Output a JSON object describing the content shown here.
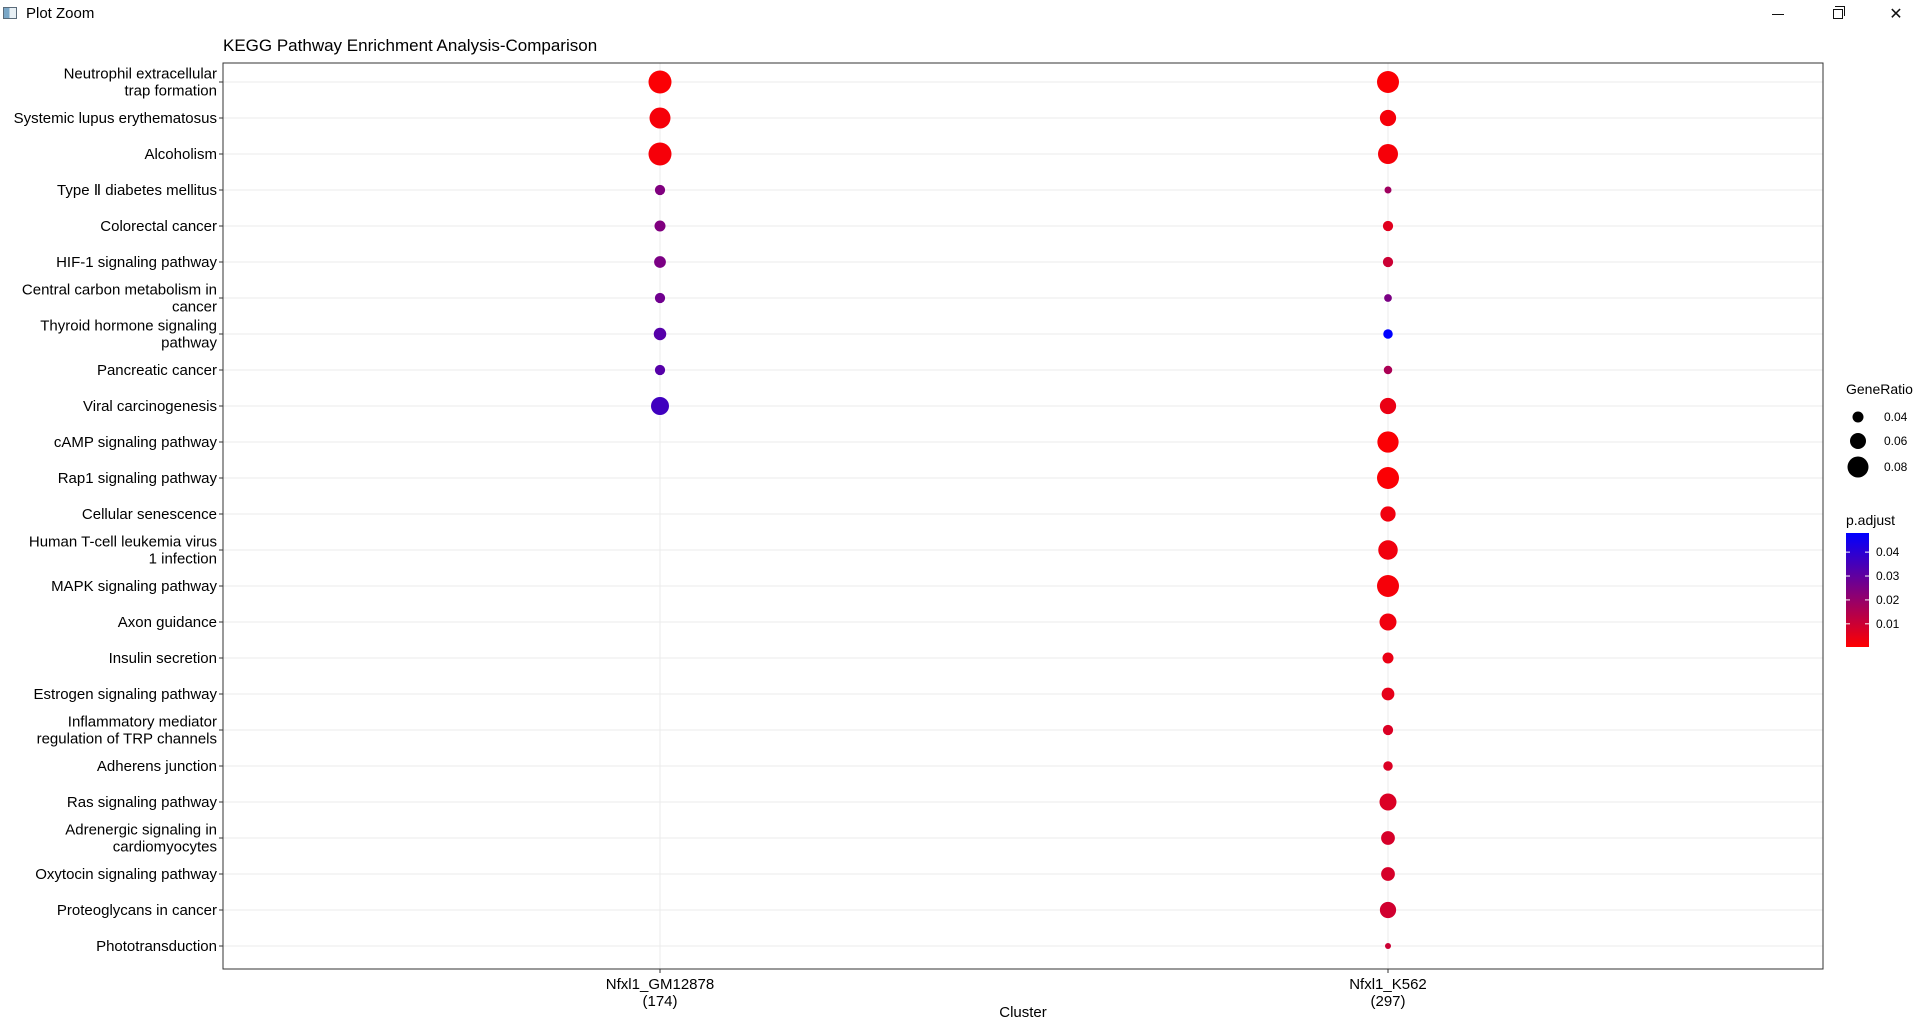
{
  "window": {
    "title": "Plot Zoom",
    "icon": "plot-window-icon",
    "controls": [
      "minimize-icon",
      "maximize-icon",
      "close-icon"
    ]
  },
  "chart_data": {
    "type": "scatter",
    "title": "KEGG Pathway Enrichment Analysis-Comparison",
    "xlabel": "Cluster",
    "ylabel": "",
    "x_categories": [
      {
        "name": "Nfxl1_GM12878",
        "count": "(174)"
      },
      {
        "name": "Nfxl1_K562",
        "count": "(297)"
      }
    ],
    "y_categories": [
      [
        "Neutrophil extracellular",
        "trap formation"
      ],
      [
        "Systemic lupus erythematosus"
      ],
      [
        "Alcoholism"
      ],
      [
        "Type Ⅱ diabetes mellitus"
      ],
      [
        "Colorectal cancer"
      ],
      [
        "HIF-1 signaling pathway"
      ],
      [
        "Central carbon metabolism in",
        "cancer"
      ],
      [
        "Thyroid hormone signaling",
        "pathway"
      ],
      [
        "Pancreatic cancer"
      ],
      [
        "Viral carcinogenesis"
      ],
      [
        "cAMP signaling pathway"
      ],
      [
        "Rap1 signaling pathway"
      ],
      [
        "Cellular senescence"
      ],
      [
        "Human T-cell leukemia virus",
        "1 infection"
      ],
      [
        "MAPK signaling pathway"
      ],
      [
        "Axon guidance"
      ],
      [
        "Insulin secretion"
      ],
      [
        "Estrogen signaling pathway"
      ],
      [
        "Inflammatory mediator",
        "regulation of TRP channels"
      ],
      [
        "Adherens junction"
      ],
      [
        "Ras signaling pathway"
      ],
      [
        "Adrenergic signaling in",
        "cardiomyocytes"
      ],
      [
        "Oxytocin signaling pathway"
      ],
      [
        "Proteoglycans in cancer"
      ],
      [
        "Phototransduction"
      ]
    ],
    "points": [
      {
        "cluster": 0,
        "pathway": 0,
        "gene_ratio": 0.088,
        "p_adjust": 0.001
      },
      {
        "cluster": 0,
        "pathway": 1,
        "gene_ratio": 0.08,
        "p_adjust": 0.002
      },
      {
        "cluster": 0,
        "pathway": 2,
        "gene_ratio": 0.088,
        "p_adjust": 0.002
      },
      {
        "cluster": 0,
        "pathway": 3,
        "gene_ratio": 0.037,
        "p_adjust": 0.024
      },
      {
        "cluster": 0,
        "pathway": 4,
        "gene_ratio": 0.04,
        "p_adjust": 0.024
      },
      {
        "cluster": 0,
        "pathway": 5,
        "gene_ratio": 0.043,
        "p_adjust": 0.025
      },
      {
        "cluster": 0,
        "pathway": 6,
        "gene_ratio": 0.037,
        "p_adjust": 0.027
      },
      {
        "cluster": 0,
        "pathway": 7,
        "gene_ratio": 0.046,
        "p_adjust": 0.032
      },
      {
        "cluster": 0,
        "pathway": 8,
        "gene_ratio": 0.037,
        "p_adjust": 0.032
      },
      {
        "cluster": 0,
        "pathway": 9,
        "gene_ratio": 0.068,
        "p_adjust": 0.036
      },
      {
        "cluster": 1,
        "pathway": 0,
        "gene_ratio": 0.084,
        "p_adjust": 0.001
      },
      {
        "cluster": 1,
        "pathway": 1,
        "gene_ratio": 0.061,
        "p_adjust": 0.002
      },
      {
        "cluster": 1,
        "pathway": 2,
        "gene_ratio": 0.076,
        "p_adjust": 0.002
      },
      {
        "cluster": 1,
        "pathway": 3,
        "gene_ratio": 0.024,
        "p_adjust": 0.018
      },
      {
        "cluster": 1,
        "pathway": 4,
        "gene_ratio": 0.037,
        "p_adjust": 0.006
      },
      {
        "cluster": 1,
        "pathway": 5,
        "gene_ratio": 0.037,
        "p_adjust": 0.01
      },
      {
        "cluster": 1,
        "pathway": 6,
        "gene_ratio": 0.027,
        "p_adjust": 0.025
      },
      {
        "cluster": 1,
        "pathway": 7,
        "gene_ratio": 0.034,
        "p_adjust": 0.048
      },
      {
        "cluster": 1,
        "pathway": 8,
        "gene_ratio": 0.03,
        "p_adjust": 0.016
      },
      {
        "cluster": 1,
        "pathway": 9,
        "gene_ratio": 0.061,
        "p_adjust": 0.004
      },
      {
        "cluster": 1,
        "pathway": 10,
        "gene_ratio": 0.081,
        "p_adjust": 0.001
      },
      {
        "cluster": 1,
        "pathway": 11,
        "gene_ratio": 0.084,
        "p_adjust": 0.001
      },
      {
        "cluster": 1,
        "pathway": 12,
        "gene_ratio": 0.057,
        "p_adjust": 0.003
      },
      {
        "cluster": 1,
        "pathway": 13,
        "gene_ratio": 0.074,
        "p_adjust": 0.003
      },
      {
        "cluster": 1,
        "pathway": 14,
        "gene_ratio": 0.084,
        "p_adjust": 0.002
      },
      {
        "cluster": 1,
        "pathway": 15,
        "gene_ratio": 0.064,
        "p_adjust": 0.003
      },
      {
        "cluster": 1,
        "pathway": 16,
        "gene_ratio": 0.04,
        "p_adjust": 0.004
      },
      {
        "cluster": 1,
        "pathway": 17,
        "gene_ratio": 0.047,
        "p_adjust": 0.005
      },
      {
        "cluster": 1,
        "pathway": 18,
        "gene_ratio": 0.037,
        "p_adjust": 0.007
      },
      {
        "cluster": 1,
        "pathway": 19,
        "gene_ratio": 0.034,
        "p_adjust": 0.007
      },
      {
        "cluster": 1,
        "pathway": 20,
        "gene_ratio": 0.064,
        "p_adjust": 0.007
      },
      {
        "cluster": 1,
        "pathway": 21,
        "gene_ratio": 0.051,
        "p_adjust": 0.008
      },
      {
        "cluster": 1,
        "pathway": 22,
        "gene_ratio": 0.051,
        "p_adjust": 0.008
      },
      {
        "cluster": 1,
        "pathway": 23,
        "gene_ratio": 0.061,
        "p_adjust": 0.009
      },
      {
        "cluster": 1,
        "pathway": 24,
        "gene_ratio": 0.02,
        "p_adjust": 0.01
      }
    ],
    "legend": {
      "placement": "right",
      "size": {
        "title": "GeneRatio",
        "breaks": [
          0.04,
          0.06,
          0.08
        ],
        "labels": [
          "0.04",
          "0.06",
          "0.08"
        ]
      },
      "color": {
        "title": "p.adjust",
        "breaks": [
          0.04,
          0.03,
          0.02,
          0.01
        ],
        "labels": [
          "0.04",
          "0.03",
          "0.02",
          "0.01"
        ],
        "low": "#ff0000",
        "high": "#0000ff",
        "range": [
          0.0003,
          0.048
        ]
      }
    },
    "grid": true,
    "colors": {
      "grid": "#ebebeb",
      "panel_border": "#333333"
    }
  }
}
